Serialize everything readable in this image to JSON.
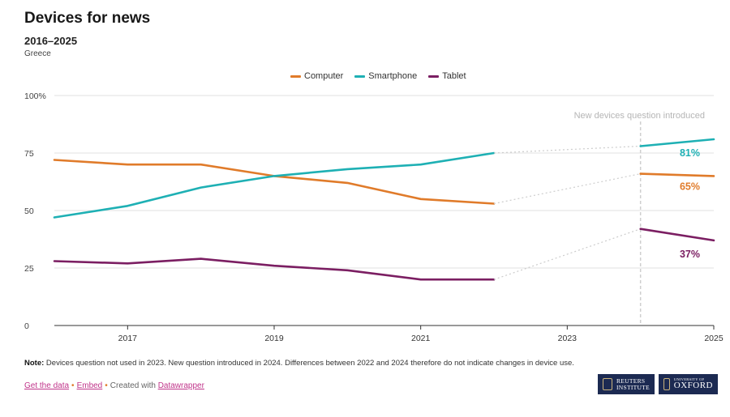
{
  "header": {
    "title": "Devices for news",
    "subtitle": "2016–2025",
    "region": "Greece"
  },
  "chart_data": {
    "type": "line",
    "title": "Devices for news",
    "subtitle": "2016–2025",
    "xlim": [
      2016,
      2025
    ],
    "ylim": [
      0,
      100
    ],
    "x_ticks": [
      2017,
      2019,
      2021,
      2023,
      2025
    ],
    "y_ticks": [
      0,
      25,
      50,
      75,
      100
    ],
    "y_tick_labels": [
      "0",
      "25",
      "50",
      "75",
      "100%"
    ],
    "legend_position": "top-center",
    "break_years": [
      2022,
      2024
    ],
    "annotation": {
      "x": 2024,
      "text": "New devices question introduced"
    },
    "series": [
      {
        "name": "Computer",
        "color": "#e07b2a",
        "end_label": "65%",
        "points": [
          [
            2016,
            72
          ],
          [
            2017,
            70
          ],
          [
            2018,
            70
          ],
          [
            2019,
            65
          ],
          [
            2020,
            62
          ],
          [
            2021,
            55
          ],
          [
            2022,
            53
          ],
          [
            2024,
            66
          ],
          [
            2025,
            65
          ]
        ]
      },
      {
        "name": "Smartphone",
        "color": "#1eb0b4",
        "end_label": "81%",
        "points": [
          [
            2016,
            47
          ],
          [
            2017,
            52
          ],
          [
            2018,
            60
          ],
          [
            2019,
            65
          ],
          [
            2020,
            68
          ],
          [
            2021,
            70
          ],
          [
            2022,
            75
          ],
          [
            2024,
            78
          ],
          [
            2025,
            81
          ]
        ]
      },
      {
        "name": "Tablet",
        "color": "#7b1e62",
        "end_label": "37%",
        "points": [
          [
            2016,
            28
          ],
          [
            2017,
            27
          ],
          [
            2018,
            29
          ],
          [
            2019,
            26
          ],
          [
            2020,
            24
          ],
          [
            2021,
            20
          ],
          [
            2022,
            20
          ],
          [
            2024,
            42
          ],
          [
            2025,
            37
          ]
        ]
      }
    ]
  },
  "note": {
    "label": "Note:",
    "text": " Devices question not used in 2023. New question introduced in 2024. Differences between 2022 and 2024 therefore do not indicate changes in device use."
  },
  "footer": {
    "get_data": "Get the data",
    "separator": "•",
    "embed": "Embed",
    "created_with": "Created with",
    "datawrapper": "Datawrapper"
  },
  "logos": {
    "reuters_line1": "REUTERS",
    "reuters_line2": "INSTITUTE",
    "oxford_line1": "UNIVERSITY OF",
    "oxford_line2": "OXFORD"
  }
}
